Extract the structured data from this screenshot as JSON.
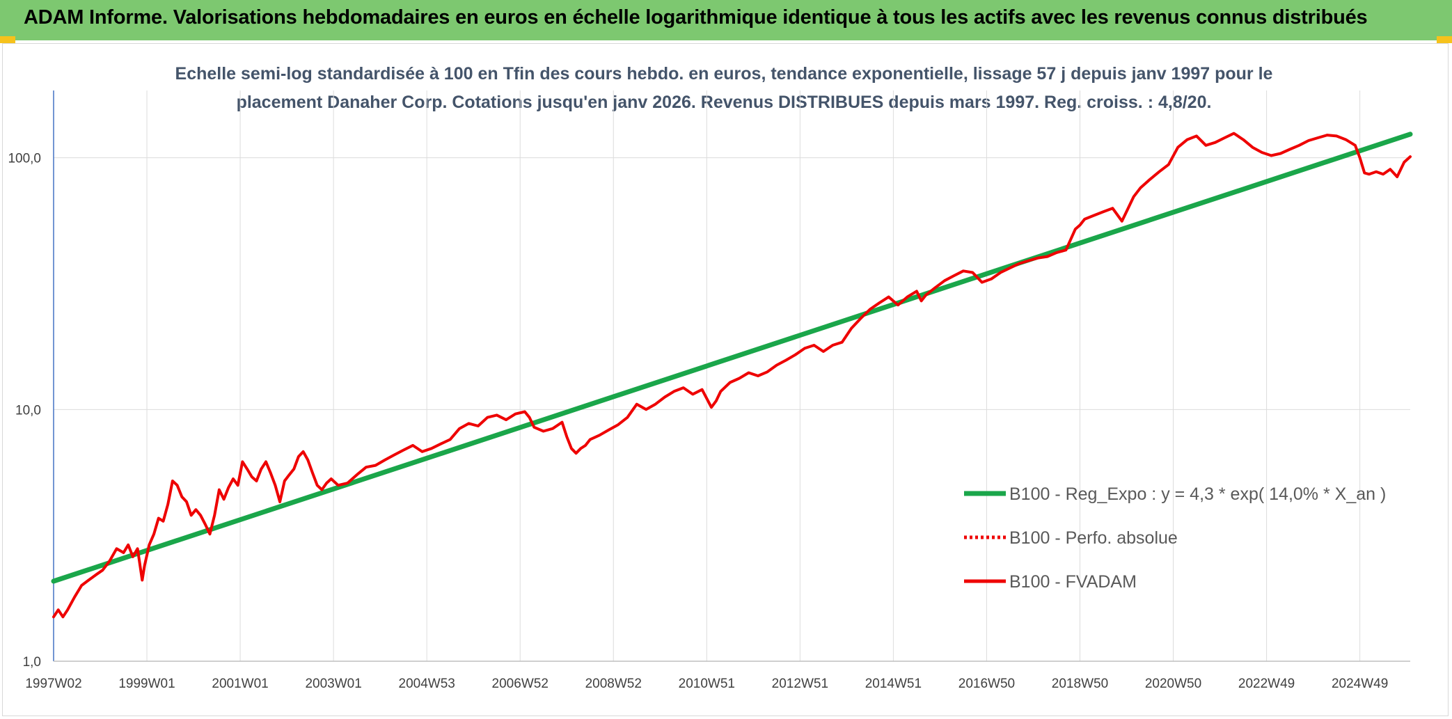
{
  "header": {
    "title": "ADAM Informe. Valorisations hebdomadaires en euros en échelle logarithmique identique à tous les actifs avec les revenus connus distribués"
  },
  "colors": {
    "banner": "#7dc870",
    "regression": "#1aa64a",
    "fvadam": "#ee0000",
    "perf_absolue": "#ee0000",
    "title_text": "#44546a"
  },
  "chart_data": {
    "type": "line",
    "title_line1": "Echelle semi-log standardisée à 100 en Tfin des cours hebdo. en euros, tendance exponentielle, lissage 57 j depuis janv 1997 pour le",
    "title_line2": "placement Danaher Corp. Cotations jusqu'en janv 2026. Revenus DISTRIBUES depuis mars 1997. Reg. croiss. : 4,8/20.",
    "y_scale": "log",
    "ylim": [
      1,
      185
    ],
    "xlim": [
      1997.0,
      2026.08
    ],
    "grid": true,
    "y_ticks": [
      {
        "value": 1,
        "label": "1,0"
      },
      {
        "value": 10,
        "label": "10,0"
      },
      {
        "value": 100,
        "label": "100,0"
      }
    ],
    "x_ticks": [
      {
        "value": 1997.0,
        "label": "1997W02"
      },
      {
        "value": 1999.0,
        "label": "1999W01"
      },
      {
        "value": 2001.0,
        "label": "2001W01"
      },
      {
        "value": 2003.0,
        "label": "2003W01"
      },
      {
        "value": 2005.0,
        "label": "2004W53"
      },
      {
        "value": 2007.0,
        "label": "2006W52"
      },
      {
        "value": 2009.0,
        "label": "2008W52"
      },
      {
        "value": 2011.0,
        "label": "2010W51"
      },
      {
        "value": 2013.0,
        "label": "2012W51"
      },
      {
        "value": 2015.0,
        "label": "2014W51"
      },
      {
        "value": 2017.0,
        "label": "2016W50"
      },
      {
        "value": 2019.0,
        "label": "2018W50"
      },
      {
        "value": 2021.0,
        "label": "2020W50"
      },
      {
        "value": 2023.0,
        "label": "2022W49"
      },
      {
        "value": 2025.0,
        "label": "2024W49"
      }
    ],
    "legend_position": "right",
    "series": [
      {
        "name": "B100 - Reg_Expo : y = 4,3 * exp( 14,0% *  X_an )",
        "style": "solid-thick",
        "color": "#1aa64a",
        "x": [
          1997.0,
          2026.08
        ],
        "y": [
          2.08,
          124
        ]
      },
      {
        "name": "B100 - Perfo. absolue",
        "style": "dotted",
        "color": "#ee0000",
        "x": [],
        "y": []
      },
      {
        "name": "B100 - FVADAM",
        "style": "solid",
        "color": "#ee0000",
        "x": [
          1997.0,
          1997.1,
          1997.2,
          1997.3,
          1997.45,
          1997.6,
          1997.75,
          1997.9,
          1998.05,
          1998.2,
          1998.35,
          1998.5,
          1998.6,
          1998.7,
          1998.8,
          1998.9,
          1998.95,
          1999.05,
          1999.15,
          1999.25,
          1999.35,
          1999.45,
          1999.55,
          1999.65,
          1999.75,
          1999.85,
          1999.95,
          2000.05,
          2000.15,
          2000.25,
          2000.35,
          2000.45,
          2000.55,
          2000.65,
          2000.75,
          2000.85,
          2000.95,
          2001.05,
          2001.15,
          2001.25,
          2001.35,
          2001.45,
          2001.55,
          2001.65,
          2001.75,
          2001.85,
          2001.95,
          2002.05,
          2002.15,
          2002.25,
          2002.35,
          2002.45,
          2002.55,
          2002.65,
          2002.75,
          2002.85,
          2002.95,
          2003.1,
          2003.3,
          2003.5,
          2003.7,
          2003.9,
          2004.1,
          2004.3,
          2004.5,
          2004.7,
          2004.9,
          2005.1,
          2005.3,
          2005.5,
          2005.7,
          2005.9,
          2006.1,
          2006.3,
          2006.5,
          2006.7,
          2006.9,
          2007.1,
          2007.2,
          2007.3,
          2007.5,
          2007.7,
          2007.9,
          2008.0,
          2008.1,
          2008.2,
          2008.3,
          2008.4,
          2008.5,
          2008.7,
          2008.9,
          2009.1,
          2009.3,
          2009.5,
          2009.7,
          2009.9,
          2010.1,
          2010.3,
          2010.5,
          2010.7,
          2010.9,
          2011.1,
          2011.2,
          2011.3,
          2011.5,
          2011.7,
          2011.9,
          2012.1,
          2012.3,
          2012.5,
          2012.7,
          2012.9,
          2013.1,
          2013.3,
          2013.5,
          2013.7,
          2013.9,
          2014.1,
          2014.3,
          2014.5,
          2014.7,
          2014.9,
          2015.1,
          2015.3,
          2015.5,
          2015.6,
          2015.7,
          2015.9,
          2016.1,
          2016.3,
          2016.5,
          2016.7,
          2016.9,
          2017.1,
          2017.3,
          2017.5,
          2017.7,
          2017.9,
          2018.1,
          2018.3,
          2018.5,
          2018.7,
          2018.9,
          2019.0,
          2019.1,
          2019.3,
          2019.5,
          2019.7,
          2019.9,
          2020.05,
          2020.15,
          2020.3,
          2020.5,
          2020.7,
          2020.9,
          2021.1,
          2021.3,
          2021.5,
          2021.7,
          2021.9,
          2022.1,
          2022.3,
          2022.5,
          2022.7,
          2022.9,
          2023.1,
          2023.3,
          2023.5,
          2023.7,
          2023.9,
          2024.1,
          2024.3,
          2024.5,
          2024.7,
          2024.9,
          2025.0,
          2025.1,
          2025.2,
          2025.35,
          2025.5,
          2025.65,
          2025.8,
          2025.95,
          2026.08
        ],
        "y": [
          1.5,
          1.6,
          1.5,
          1.6,
          1.8,
          2.0,
          2.1,
          2.2,
          2.3,
          2.5,
          2.8,
          2.7,
          2.9,
          2.6,
          2.8,
          2.1,
          2.4,
          2.9,
          3.2,
          3.7,
          3.6,
          4.2,
          5.2,
          5.0,
          4.5,
          4.3,
          3.8,
          4.0,
          3.8,
          3.5,
          3.2,
          3.8,
          4.8,
          4.4,
          4.9,
          5.3,
          5.0,
          6.2,
          5.8,
          5.4,
          5.2,
          5.8,
          6.2,
          5.6,
          5.0,
          4.3,
          5.2,
          5.5,
          5.8,
          6.5,
          6.8,
          6.3,
          5.6,
          5.0,
          4.8,
          5.1,
          5.3,
          5.0,
          5.1,
          5.5,
          5.9,
          6.0,
          6.3,
          6.6,
          6.9,
          7.2,
          6.8,
          7.0,
          7.3,
          7.6,
          8.4,
          8.8,
          8.6,
          9.3,
          9.5,
          9.1,
          9.6,
          9.8,
          9.3,
          8.5,
          8.2,
          8.4,
          8.9,
          7.8,
          7.0,
          6.7,
          7.0,
          7.2,
          7.6,
          7.9,
          8.3,
          8.7,
          9.3,
          10.5,
          10.0,
          10.5,
          11.2,
          11.8,
          12.2,
          11.5,
          12.0,
          10.2,
          10.8,
          11.8,
          12.8,
          13.3,
          14.0,
          13.6,
          14.1,
          15.0,
          15.7,
          16.5,
          17.5,
          18.0,
          17.0,
          18.0,
          18.5,
          21.0,
          23.0,
          25.0,
          26.5,
          28.0,
          26.0,
          28.0,
          29.5,
          27.0,
          28.5,
          30.5,
          32.5,
          34.0,
          35.5,
          35.0,
          32.0,
          33.0,
          35.0,
          36.5,
          38.0,
          39.0,
          40.0,
          40.5,
          42.0,
          43.0,
          52.0,
          54.0,
          57.0,
          59.0,
          61.0,
          63.0,
          56.0,
          64.0,
          70.0,
          76.0,
          82.0,
          88.0,
          94.0,
          110.0,
          118.0,
          122.0,
          112.0,
          115.0,
          120.0,
          125.0,
          118.0,
          110.0,
          105.0,
          102.0,
          104.0,
          108.0,
          112.0,
          117.0,
          120.0,
          123.0,
          122.0,
          118.0,
          112.0,
          100.0,
          87.0,
          86.0,
          88.0,
          86.0,
          90.0,
          84.0,
          96.0,
          101.0
        ]
      }
    ]
  }
}
